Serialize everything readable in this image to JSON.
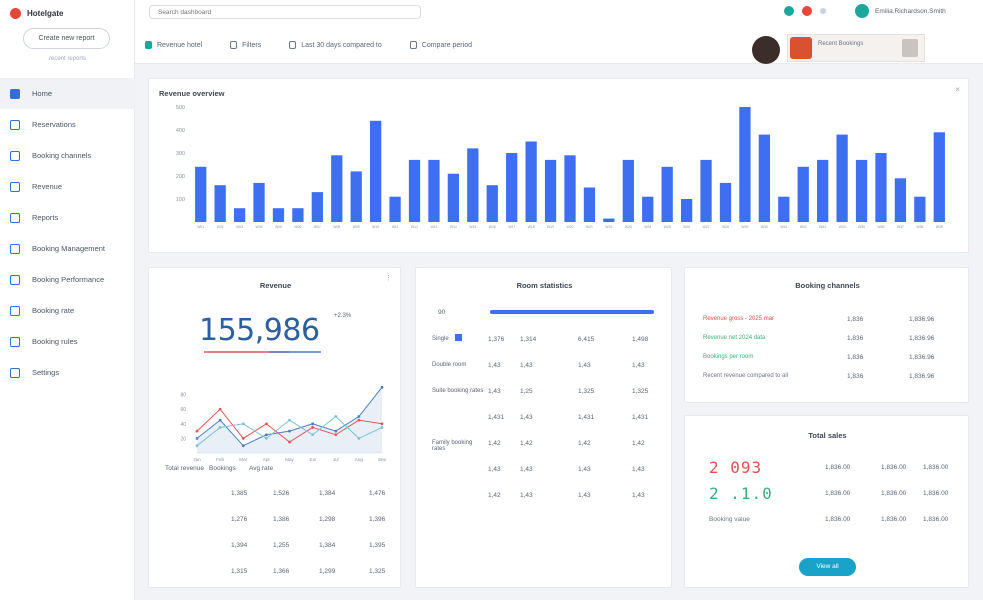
{
  "app": {
    "name": "Hotelgate"
  },
  "search": {
    "placeholder": "Search dashboard"
  },
  "sidebar": {
    "button_label": "Create new report",
    "sub_text": "recent reports",
    "items": [
      {
        "label": "Home",
        "active": true
      },
      {
        "label": "Reservations"
      },
      {
        "label": "Booking channels"
      },
      {
        "label": "Revenue"
      },
      {
        "label": "Reports"
      },
      {
        "label": "Booking Management"
      },
      {
        "label": "Booking Performance"
      },
      {
        "label": "Booking rate"
      },
      {
        "label": "Booking rules"
      },
      {
        "label": "Settings"
      }
    ]
  },
  "topbar": {
    "filters": [
      "Revenue hotel",
      "Filters",
      "Last 30 days compared to",
      "Compare period"
    ],
    "user_name": "Emilia.Richardson.Smith",
    "promo_text": "Recent Bookings"
  },
  "chart_data": [
    {
      "type": "bar",
      "title": "Revenue overview",
      "categories": [
        "W01",
        "W02",
        "W03",
        "W04",
        "W05",
        "W06",
        "W07",
        "W08",
        "W09",
        "W10",
        "W11",
        "W12",
        "W13",
        "W14",
        "W15",
        "W16",
        "W17",
        "W18",
        "W19",
        "W20",
        "W21",
        "W22",
        "W23",
        "W24",
        "W25",
        "W26",
        "W27",
        "W28",
        "W29",
        "W30",
        "W31",
        "W32",
        "W33",
        "W34",
        "W35",
        "W36",
        "W37",
        "W38",
        "W39"
      ],
      "values": [
        240,
        160,
        60,
        170,
        60,
        60,
        130,
        290,
        220,
        440,
        110,
        270,
        270,
        210,
        320,
        160,
        300,
        350,
        270,
        290,
        150,
        15,
        270,
        110,
        240,
        100,
        270,
        170,
        500,
        380,
        110,
        240,
        270,
        380,
        270,
        300,
        190,
        110,
        390
      ],
      "ylim": [
        0,
        500
      ],
      "yticks": [
        100,
        200,
        300,
        400,
        500
      ],
      "color": "#3e6ff0"
    },
    {
      "type": "line",
      "title": "",
      "x": [
        "Jan",
        "Feb",
        "Mar",
        "Apr",
        "May",
        "Jun",
        "Jul",
        "Aug",
        "Sep"
      ],
      "series": [
        {
          "color": "#4a7fc0",
          "values": [
            20,
            45,
            10,
            25,
            30,
            40,
            30,
            50,
            90
          ]
        },
        {
          "color": "#e1575a",
          "values": [
            30,
            60,
            20,
            40,
            15,
            35,
            25,
            45,
            40
          ]
        },
        {
          "color": "#7cc2cf",
          "values": [
            10,
            35,
            40,
            20,
            45,
            25,
            50,
            20,
            35
          ]
        }
      ],
      "ylim": [
        0,
        100
      ],
      "yticks": [
        20,
        40,
        60,
        80
      ]
    }
  ],
  "colors": {
    "accent": "#3e6ff0",
    "button": "#1aa3c9",
    "brand": "#e8463a"
  },
  "overview": {
    "title": "Revenue overview"
  },
  "sales": {
    "title": "Revenue",
    "big_value": "155,986",
    "tag": "+2.3%",
    "legend": [
      "Total revenue",
      "Bookings",
      "Avg rate"
    ],
    "rows": [
      [
        "1,385",
        "1,526",
        "1,384",
        "1,476"
      ],
      [
        "1,276",
        "1,386",
        "1,298",
        "1,396"
      ],
      [
        "1,394",
        "1,255",
        "1,384",
        "1,395"
      ],
      [
        "1,315",
        "1,366",
        "1,299",
        "1,325"
      ]
    ]
  },
  "stats": {
    "title": "Room statistics",
    "progress_label": "90",
    "progress_value": 1.0,
    "rows": [
      {
        "label": "Single",
        "cols": [
          "1,376",
          "1,314",
          "6,415",
          "1,498"
        ]
      },
      {
        "label": "Double room",
        "cols": [
          "1,43",
          "1,43",
          "1,43",
          "1,43"
        ]
      },
      {
        "label": "Suite booking rates",
        "cols": [
          "1,43",
          "1,25",
          "1,325",
          "1,325"
        ]
      },
      {
        "label": "",
        "cols": [
          "1,431",
          "1,43",
          "1,431",
          "1,431"
        ]
      },
      {
        "label": "Family booking rates",
        "cols": [
          "1,42",
          "1,42",
          "1,42",
          "1,42"
        ]
      },
      {
        "label": "",
        "cols": [
          "1,43",
          "1,43",
          "1,43",
          "1,43"
        ]
      },
      {
        "label": "",
        "cols": [
          "1,42",
          "1,43",
          "1,43",
          "1,43"
        ]
      }
    ]
  },
  "perf": {
    "title": "Booking channels",
    "rows": [
      {
        "label": "Revenue gross - 2025 mar",
        "color": "#d9534f",
        "a": "1,836",
        "b": "1,836.96"
      },
      {
        "label": "Revenue net 2024 data",
        "color": "#3cae7e",
        "a": "1,836",
        "b": "1,836.96"
      },
      {
        "label": "Bookings per room",
        "color": "#3cae7e",
        "a": "1,836",
        "b": "1,836.96"
      },
      {
        "label": "Recent revenue compared to all",
        "color": "#6d7785",
        "a": "1,836",
        "b": "1,836.96"
      }
    ]
  },
  "summary": {
    "title": "Total sales",
    "rows": [
      {
        "value": "2 093",
        "color": "#d9534f",
        "c": [
          "1,836.00",
          "1,836.00",
          "1,836.00"
        ]
      },
      {
        "value": "2 .1.0",
        "color": "#3cae7e",
        "c": [
          "1,836.00",
          "1,836.00",
          "1,836.00"
        ]
      },
      {
        "value": "Booking value",
        "color": "#6d7785",
        "c": [
          "1,836.00",
          "1,836.00",
          "1,836.00"
        ]
      }
    ],
    "button_label": "View all"
  }
}
